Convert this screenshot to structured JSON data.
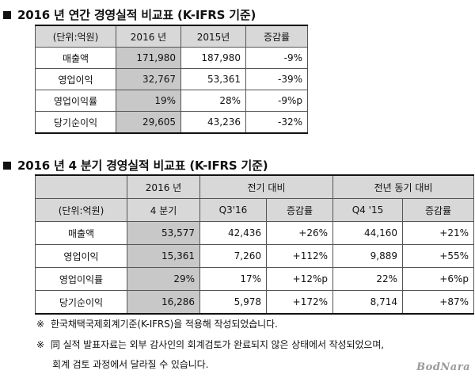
{
  "section1": {
    "title": "2016 년 연간 경영실적 비교표 (K-IFRS 기준)",
    "headers": [
      "(단위:억원)",
      "2016 년",
      "2015년",
      "증감률"
    ],
    "rows": [
      {
        "label": "매출액",
        "v2016": "171,980",
        "v2015": "187,980",
        "change": "-9%"
      },
      {
        "label": "영업이익",
        "v2016": "32,767",
        "v2015": "53,361",
        "change": "-39%"
      },
      {
        "label": "영업이익률",
        "v2016": "19%",
        "v2015": "28%",
        "change": "-9%p"
      },
      {
        "label": "당기순이익",
        "v2016": "29,605",
        "v2015": "43,236",
        "change": "-32%"
      }
    ]
  },
  "section2": {
    "title": "2016 년 4 분기 경영실적 비교표 (K-IFRS 기준)",
    "header_top": {
      "col2": "2016 년",
      "group_qoq": "전기 대비",
      "group_yoy": "전년 동기 대비"
    },
    "header_bottom": {
      "unit": "(단위:억원)",
      "col2": "4 분기",
      "q3": "Q3'16",
      "change_qoq": "증감률",
      "q4": "Q4 '15",
      "change_yoy": "증감률"
    },
    "rows": [
      {
        "label": "매출액",
        "q4_16": "53,577",
        "q3_16": "42,436",
        "qoq": "+26%",
        "q4_15": "44,160",
        "yoy": "+21%"
      },
      {
        "label": "영업이익",
        "q4_16": "15,361",
        "q3_16": "7,260",
        "qoq": "+112%",
        "q4_15": "9,889",
        "yoy": "+55%"
      },
      {
        "label": "영업이익률",
        "q4_16": "29%",
        "q3_16": "17%",
        "qoq": "+12%p",
        "q4_15": "22%",
        "yoy": "+6%p"
      },
      {
        "label": "당기순이익",
        "q4_16": "16,286",
        "q3_16": "5,978",
        "qoq": "+172%",
        "q4_15": "8,714",
        "yoy": "+87%"
      }
    ]
  },
  "notes": {
    "mark": "※",
    "line1": "한국채택국제회계기준(K-IFRS)을 적용해 작성되었습니다.",
    "line2": "同 실적 발표자료는 외부 감사인의 회계검토가 완료되지 않은 상태에서 작성되었으며,",
    "line3": "회계 검토 과정에서 달라질 수 있습니다."
  },
  "watermark": "BodNara"
}
